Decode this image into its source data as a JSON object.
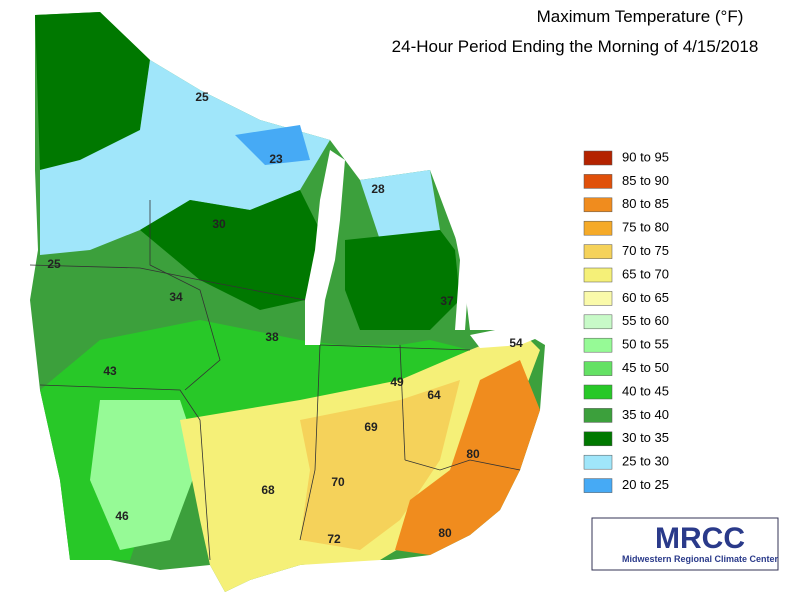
{
  "title": "Maximum Temperature (°F)",
  "subtitle": "24-Hour Period Ending the Morning of 4/15/2018",
  "legend": [
    {
      "label": "90 to 95",
      "color": "#b42300"
    },
    {
      "label": "85 to 90",
      "color": "#e0500a"
    },
    {
      "label": "80 to 85",
      "color": "#f08c1e"
    },
    {
      "label": "75 to 80",
      "color": "#f5aa28"
    },
    {
      "label": "70 to 75",
      "color": "#f5d25a"
    },
    {
      "label": "65 to 70",
      "color": "#f5f078"
    },
    {
      "label": "60 to 65",
      "color": "#fafaaa"
    },
    {
      "label": "55 to 60",
      "color": "#c8fac8"
    },
    {
      "label": "50 to 55",
      "color": "#96fa96"
    },
    {
      "label": "45 to 50",
      "color": "#64e164"
    },
    {
      "label": "40 to 45",
      "color": "#28c828"
    },
    {
      "label": "35 to 40",
      "color": "#3ca03c"
    },
    {
      "label": "30 to 35",
      "color": "#007800"
    },
    {
      "label": "25 to 30",
      "color": "#a0e6fa"
    },
    {
      "label": "20 to 25",
      "color": "#46aaf5"
    }
  ],
  "station_labels": [
    25,
    23,
    28,
    30,
    25,
    34,
    37,
    38,
    43,
    49,
    54,
    64,
    69,
    80,
    68,
    70,
    46,
    72,
    80
  ],
  "logo": {
    "acronym": "MRCC",
    "name": "Midwestern Regional Climate Center"
  }
}
